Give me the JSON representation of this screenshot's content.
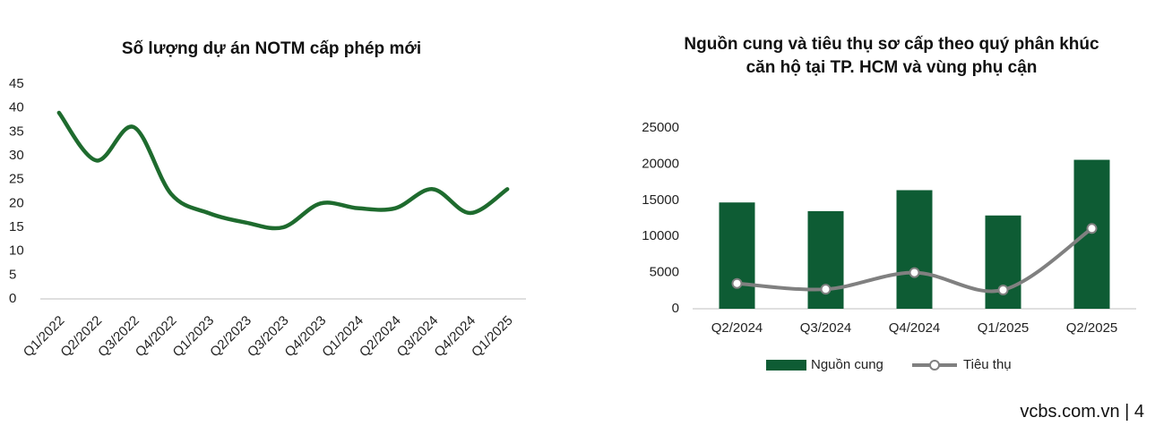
{
  "chart_data": [
    {
      "type": "line",
      "title": "Số lượng dự án NOTM cấp phép mới",
      "categories": [
        "Q1/2022",
        "Q2/2022",
        "Q3/2022",
        "Q4/2022",
        "Q1/2023",
        "Q2/2023",
        "Q3/2023",
        "Q4/2023",
        "Q1/2024",
        "Q2/2024",
        "Q3/2024",
        "Q4/2024",
        "Q1/2025"
      ],
      "series": [
        {
          "color": "#1e6b2e",
          "values": [
            39,
            29,
            36,
            22,
            18,
            16,
            15,
            20,
            19,
            19,
            23,
            18,
            23
          ]
        }
      ],
      "ylim": [
        0,
        45
      ],
      "yticks": [
        0,
        5,
        10,
        15,
        20,
        25,
        30,
        35,
        40,
        45
      ],
      "smooth": true
    },
    {
      "type": "combo",
      "title": "Nguồn cung và tiêu thụ sơ cấp theo quý phân khúc căn hộ tại TP. HCM và vùng phụ cận",
      "categories": [
        "Q2/2024",
        "Q3/2024",
        "Q4/2024",
        "Q1/2025",
        "Q2/2025"
      ],
      "series": [
        {
          "name": "Nguồn cung",
          "type": "bar",
          "color": "#0e5c34",
          "values": [
            14700,
            13500,
            16400,
            12900,
            20600
          ]
        },
        {
          "name": "Tiêu thụ",
          "type": "line",
          "color": "#808080",
          "values": [
            3500,
            2700,
            5000,
            2600,
            11100
          ]
        }
      ],
      "ylim": [
        0,
        25000
      ],
      "yticks": [
        0,
        5000,
        10000,
        15000,
        20000,
        25000
      ],
      "legend": "bottom",
      "smooth": true
    }
  ],
  "footer": "vcbs.com.vn | 4"
}
